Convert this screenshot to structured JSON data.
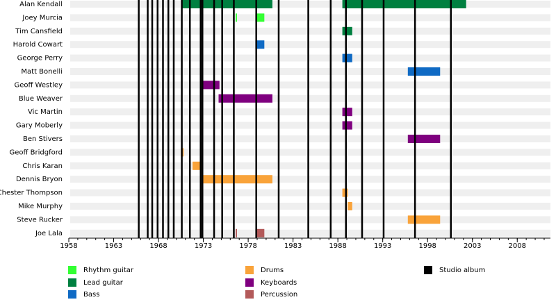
{
  "chart_data": {
    "type": "timeline",
    "categories": [
      "Alan Kendall",
      "Joey Murcia",
      "Tim Cansfield",
      "Harold Cowart",
      "George Perry",
      "Matt Bonelli",
      "Geoff Westley",
      "Blue Weaver",
      "Vic Martin",
      "Gary Moberly",
      "Ben Stivers",
      "Geoff Bridgford",
      "Chris Karan",
      "Dennis Bryon",
      "Chester Thompson",
      "Mike Murphy",
      "Steve Rucker",
      "Joe Lala"
    ],
    "xlim": [
      1958,
      2011.7
    ],
    "xticks": [
      1958,
      1963,
      1968,
      1973,
      1978,
      1983,
      1988,
      1993,
      1998,
      2003,
      2008
    ],
    "grid": true,
    "series": [
      {
        "name": "Rhythm guitar",
        "color": "#33ff33",
        "spans": [
          {
            "member": "Joey Murcia",
            "start": 1976.6,
            "end": 1976.75
          },
          {
            "member": "Joey Murcia",
            "start": 1978.8,
            "end": 1979.8
          }
        ]
      },
      {
        "name": "Lead guitar",
        "color": "#008040",
        "spans": [
          {
            "member": "Alan Kendall",
            "start": 1970.6,
            "end": 1980.7
          },
          {
            "member": "Alan Kendall",
            "start": 1988.5,
            "end": 2002.3
          },
          {
            "member": "Tim Cansfield",
            "start": 1988.5,
            "end": 1989.6
          }
        ]
      },
      {
        "name": "Bass",
        "color": "#0f6ac4",
        "spans": [
          {
            "member": "Harold Cowart",
            "start": 1978.8,
            "end": 1979.8
          },
          {
            "member": "George Perry",
            "start": 1988.5,
            "end": 1989.6
          },
          {
            "member": "Matt Bonelli",
            "start": 1995.8,
            "end": 1999.4
          }
        ]
      },
      {
        "name": "Drums",
        "color": "#f9a33a",
        "spans": [
          {
            "member": "Geoff Bridgford",
            "start": 1970.5,
            "end": 1970.8
          },
          {
            "member": "Chris Karan",
            "start": 1971.8,
            "end": 1972.8
          },
          {
            "member": "Dennis Bryon",
            "start": 1972.8,
            "end": 1980.7
          },
          {
            "member": "Chester Thompson",
            "start": 1988.5,
            "end": 1989.1
          },
          {
            "member": "Mike Murphy",
            "start": 1989.1,
            "end": 1989.6
          },
          {
            "member": "Steve Rucker",
            "start": 1995.8,
            "end": 1999.4
          }
        ]
      },
      {
        "name": "Keyboards",
        "color": "#7f007f",
        "spans": [
          {
            "member": "Geoff Westley",
            "start": 1972.8,
            "end": 1974.8
          },
          {
            "member": "Blue Weaver",
            "start": 1974.7,
            "end": 1980.7
          },
          {
            "member": "Vic Martin",
            "start": 1988.5,
            "end": 1989.6
          },
          {
            "member": "Gary Moberly",
            "start": 1988.5,
            "end": 1989.6
          },
          {
            "member": "Ben Stivers",
            "start": 1995.8,
            "end": 1999.4
          }
        ]
      },
      {
        "name": "Percussion",
        "color": "#b35a5a",
        "spans": [
          {
            "member": "Joe Lala",
            "start": 1976.6,
            "end": 1976.75
          },
          {
            "member": "Joe Lala",
            "start": 1978.8,
            "end": 1979.8
          }
        ]
      }
    ],
    "events": {
      "name": "Studio album",
      "color": "#000000",
      "values": [
        1965.8,
        1966.8,
        1967.3,
        1967.9,
        1968.5,
        1969.1,
        1969.7,
        1970.6,
        1971.5,
        1972.7,
        1972.9,
        1974.2,
        1975.1,
        1976.4,
        1978.9,
        1981.4,
        1984.7,
        1987.2,
        1988.9,
        1990.7,
        1993.1,
        1996.6,
        2000.6
      ]
    }
  }
}
